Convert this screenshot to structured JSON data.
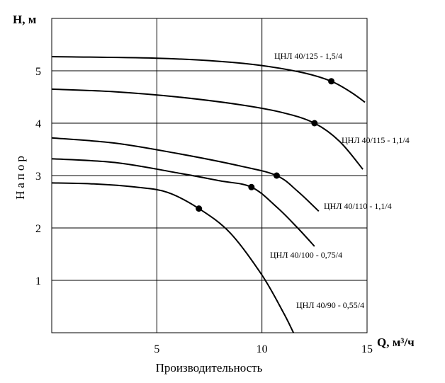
{
  "chart_data": {
    "type": "line",
    "xlabel": "Производительность",
    "ylabel": "Напор",
    "x_axis_title": "Q, м³/ч",
    "y_axis_title": "H, м",
    "xlim": [
      0,
      15
    ],
    "ylim": [
      0,
      6
    ],
    "x_ticks": [
      5,
      10,
      15
    ],
    "y_ticks": [
      1,
      2,
      3,
      4,
      5
    ],
    "grid": true,
    "series": [
      {
        "name": "ЦНЛ 40/125 - 1,5/4",
        "x": [
          0,
          5,
          8,
          10,
          12,
          13.3,
          14.2,
          14.9
        ],
        "y": [
          5.27,
          5.24,
          5.18,
          5.1,
          4.96,
          4.8,
          4.6,
          4.4
        ],
        "marker": {
          "x": 13.3,
          "y": 4.8
        }
      },
      {
        "name": "ЦНЛ 40/115 - 1,1/4",
        "x": [
          0,
          3,
          6,
          9,
          11,
          12.5,
          13.7,
          14.8
        ],
        "y": [
          4.65,
          4.6,
          4.5,
          4.35,
          4.2,
          4.0,
          3.65,
          3.12
        ],
        "marker": {
          "x": 12.5,
          "y": 4.0
        }
      },
      {
        "name": "ЦНЛ 40/110 - 1,1/4",
        "x": [
          0,
          3,
          6,
          9,
          10.7,
          11.7,
          12.7
        ],
        "y": [
          3.72,
          3.62,
          3.42,
          3.18,
          3.0,
          2.7,
          2.32
        ],
        "marker": {
          "x": 10.7,
          "y": 3.0
        }
      },
      {
        "name": "ЦНЛ 40/100 - 0,75/4",
        "x": [
          0,
          3,
          6,
          8,
          9.5,
          10.7,
          11.7,
          12.5
        ],
        "y": [
          3.32,
          3.25,
          3.05,
          2.9,
          2.78,
          2.4,
          2.0,
          1.65
        ],
        "marker": {
          "x": 9.5,
          "y": 2.78
        }
      },
      {
        "name": "ЦНЛ 40/90 - 0,55/4",
        "x": [
          0,
          2,
          4,
          5.5,
          7,
          8.5,
          10,
          11,
          11.5
        ],
        "y": [
          2.86,
          2.84,
          2.78,
          2.68,
          2.37,
          1.9,
          1.1,
          0.4,
          0.0
        ],
        "marker": {
          "x": 7.0,
          "y": 2.37
        }
      }
    ]
  }
}
